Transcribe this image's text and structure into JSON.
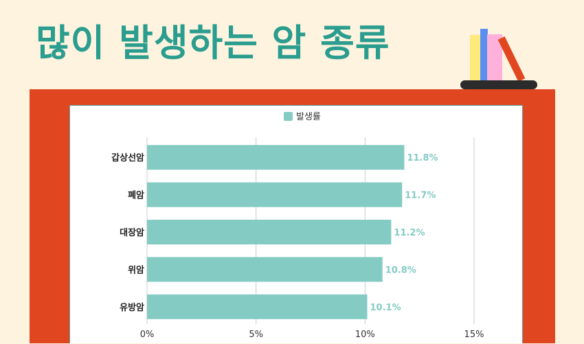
{
  "header": {
    "title": "많이 발생하는 암 종류",
    "icon": "bookshelf-icon"
  },
  "colors": {
    "background": "#fdf3df",
    "title": "#2a9d8f",
    "frame": "#e0461f",
    "bar": "#84cbc4",
    "grid": "#cccccc"
  },
  "chart_data": {
    "type": "bar",
    "orientation": "horizontal",
    "title": "",
    "xlabel": "",
    "ylabel": "",
    "categories": [
      "갑상선암",
      "폐암",
      "대장암",
      "위암",
      "유방암"
    ],
    "series": [
      {
        "name": "발생률",
        "values": [
          11.8,
          11.7,
          11.2,
          10.8,
          10.1
        ],
        "value_labels": [
          "11.8%",
          "11.7%",
          "11.2%",
          "10.8%",
          "10.1%"
        ]
      }
    ],
    "xlim": [
      0,
      15
    ],
    "ticks": [
      0,
      5,
      10,
      15
    ],
    "tick_labels": [
      "0%",
      "5%",
      "10%",
      "15%"
    ],
    "grid": true,
    "legend_position": "top-center"
  }
}
